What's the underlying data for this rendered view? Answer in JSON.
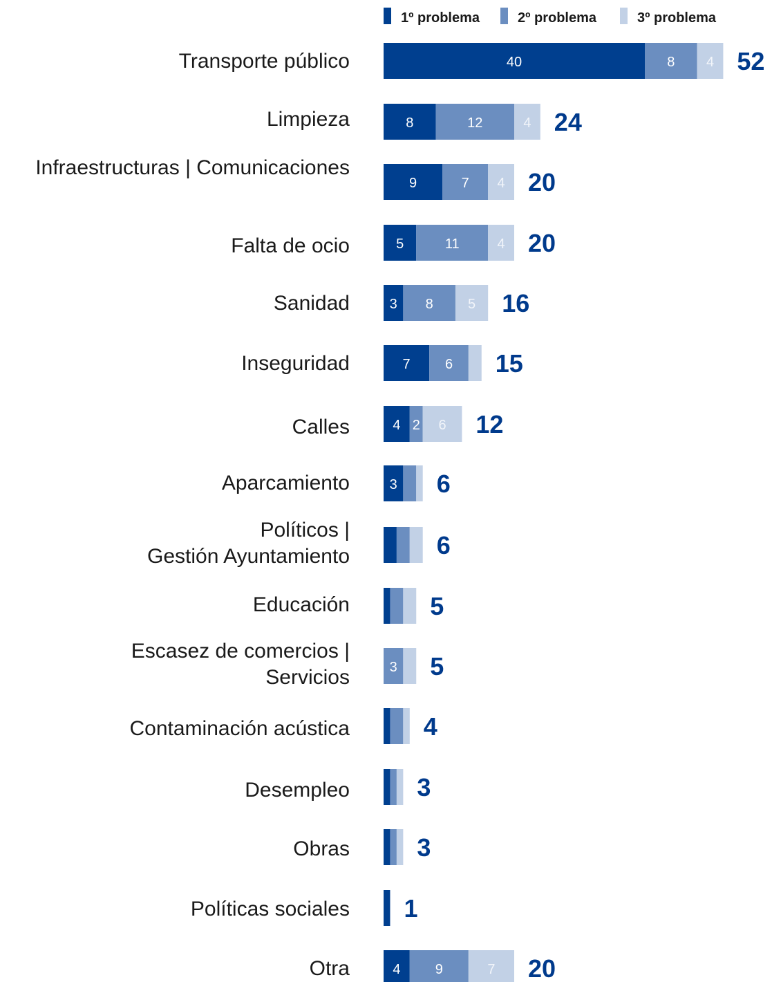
{
  "chart_data": {
    "type": "bar",
    "orientation": "horizontal",
    "stacked": true,
    "title": "",
    "xlabel": "",
    "ylabel": "",
    "grid": false,
    "legend_position": "top-right",
    "colors": [
      "#003f8f",
      "#6b8ec0",
      "#c2d1e6"
    ],
    "series": [
      {
        "name": "1º problema",
        "values": [
          40,
          8,
          9,
          5,
          3,
          7,
          4,
          3,
          2,
          1,
          0,
          1,
          1,
          1,
          1,
          4
        ]
      },
      {
        "name": "2º problema",
        "values": [
          8,
          12,
          7,
          11,
          8,
          6,
          2,
          2,
          2,
          2,
          3,
          2,
          1,
          1,
          0,
          9
        ]
      },
      {
        "name": "3º problema",
        "values": [
          4,
          4,
          4,
          4,
          5,
          2,
          6,
          1,
          2,
          2,
          2,
          1,
          1,
          1,
          0,
          7
        ]
      }
    ],
    "totals": [
      52,
      24,
      20,
      20,
      16,
      15,
      12,
      6,
      6,
      5,
      5,
      4,
      3,
      3,
      1,
      20
    ],
    "categories": [
      [
        "Transporte público"
      ],
      [
        "Limpieza"
      ],
      [
        "Infraestructuras | Comunicaciones"
      ],
      [
        "Falta de ocio"
      ],
      [
        "Sanidad"
      ],
      [
        "Inseguridad"
      ],
      [
        "Calles"
      ],
      [
        "Aparcamiento"
      ],
      [
        "Políticos |",
        "Gestión Ayuntamiento"
      ],
      [
        "Educación"
      ],
      [
        "Escasez de comercios |",
        "Servicios"
      ],
      [
        "Contaminación acústica"
      ],
      [
        "Desempleo"
      ],
      [
        "Obras"
      ],
      [
        "Políticas sociales"
      ],
      [
        "Otra"
      ]
    ],
    "segment_labels": [
      [
        "40",
        "8",
        "4"
      ],
      [
        "8",
        "12",
        "4"
      ],
      [
        "9",
        "7",
        "4"
      ],
      [
        "5",
        "11",
        "4"
      ],
      [
        "3",
        "8",
        "5"
      ],
      [
        "7",
        "6",
        ""
      ],
      [
        "4",
        "2",
        "6"
      ],
      [
        "3",
        "",
        ""
      ],
      [
        "",
        "",
        ""
      ],
      [
        "",
        "",
        ""
      ],
      [
        "",
        "3",
        ""
      ],
      [
        "",
        "",
        ""
      ],
      [
        "",
        "",
        ""
      ],
      [
        "",
        "",
        ""
      ],
      [
        "",
        "",
        ""
      ],
      [
        "4",
        "9",
        "7"
      ]
    ],
    "segment_label_colors": [
      "#ffffff",
      "#ffffff",
      "#f2f5fa"
    ]
  }
}
